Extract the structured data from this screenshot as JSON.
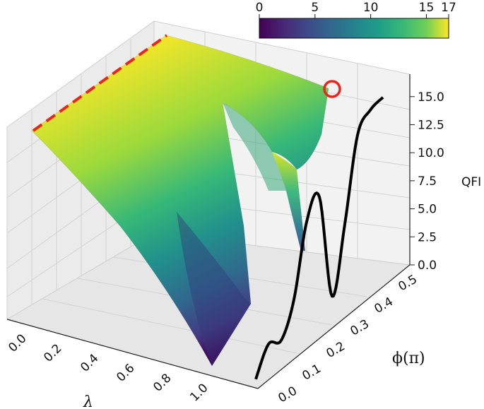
{
  "chart_data": {
    "type": "surface3d",
    "axes": {
      "x": {
        "label": "λ",
        "ticks": [
          "0.0",
          "0.2",
          "0.4",
          "0.6",
          "0.8",
          "1.0"
        ],
        "range": [
          0,
          1
        ]
      },
      "y": {
        "label": "ϕ(π)",
        "ticks": [
          "0.0",
          "0.1",
          "0.2",
          "0.3",
          "0.4",
          "0.5"
        ],
        "range": [
          0,
          0.5
        ]
      },
      "z": {
        "label": "QFI",
        "ticks": [
          "0.0",
          "2.5",
          "5.0",
          "7.5",
          "10.0",
          "12.5",
          "15.0"
        ],
        "range": [
          0,
          17
        ]
      }
    },
    "colorbar": {
      "colormap": "viridis",
      "range": [
        0,
        17
      ],
      "ticks": [
        "0",
        "5",
        "10",
        "15",
        "17"
      ],
      "position": "top-right"
    },
    "surface": {
      "lambda_max_line": {
        "color": "#e8261c",
        "style": "dashed",
        "lambda": 0
      },
      "marker": {
        "color": "#e8261c",
        "lambda": 0,
        "phi": 0.5,
        "qfi": 16
      }
    },
    "projection_curve": {
      "color": "#000000",
      "phi": [
        0.0,
        0.05,
        0.1,
        0.15,
        0.2,
        0.25,
        0.3,
        0.35,
        0.4,
        0.45,
        0.5
      ],
      "qfi": [
        0.2,
        2.4,
        1.8,
        4.5,
        10.5,
        11.8,
        2.0,
        7.5,
        14.5,
        15.8,
        16.0
      ]
    },
    "grid": true
  }
}
